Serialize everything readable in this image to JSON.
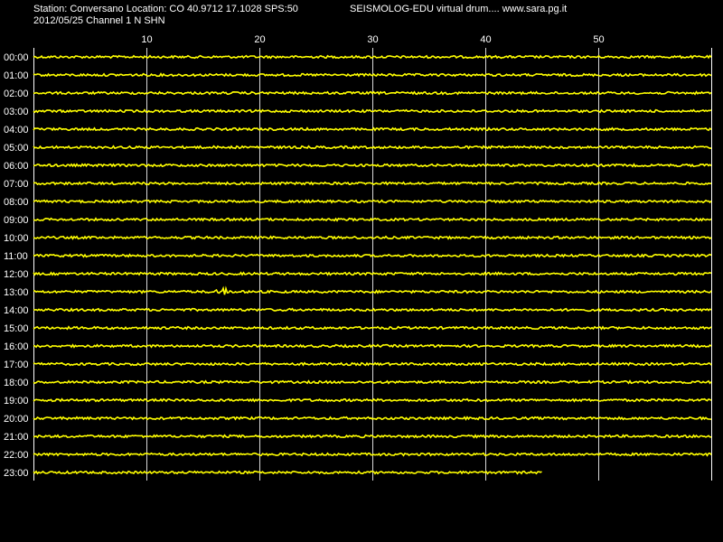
{
  "header": {
    "station_line": "Station: Conversano Location: CO 40.9712 17.1028 SPS:50",
    "date_channel_line": "2012/05/25  Channel 1 N SHN",
    "program_line": "SEISMOLOG-EDU virtual drum.... www.sara.pg.it"
  },
  "drum": {
    "minute_range": [
      0,
      60
    ],
    "minute_ticks": [
      10,
      20,
      30,
      40,
      50
    ],
    "hours": [
      "00:00",
      "01:00",
      "02:00",
      "03:00",
      "04:00",
      "05:00",
      "06:00",
      "07:00",
      "08:00",
      "09:00",
      "10:00",
      "11:00",
      "12:00",
      "13:00",
      "14:00",
      "15:00",
      "16:00",
      "17:00",
      "18:00",
      "19:00",
      "20:00",
      "21:00",
      "22:00",
      "23:00"
    ],
    "last_trace_end_minute": 45,
    "events": [
      {
        "hour": "13:00",
        "minute": 16.8
      }
    ],
    "colors": {
      "background": "#000000",
      "trace": "#ffff00",
      "grid": "#ffffff",
      "text": "#ffffff"
    }
  }
}
